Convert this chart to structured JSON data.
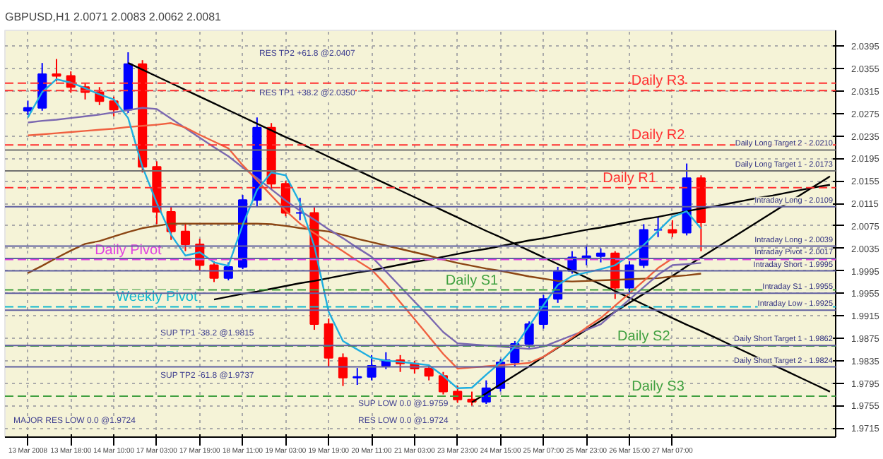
{
  "chart_data": {
    "type": "candlestick",
    "title": "GBPUSD,H1  2.0071 2.0083 2.0062 2.0081",
    "categories": [
      "13 Mar 2008",
      null,
      null,
      "13 Mar 18:00",
      null,
      null,
      "14 Mar 10:00",
      null,
      null,
      "17 Mar 03:00",
      null,
      null,
      "17 Mar 19:00",
      null,
      null,
      "18 Mar 11:00",
      null,
      null,
      "19 Mar 03:00",
      null,
      null,
      "19 Mar 19:00",
      null,
      null,
      "20 Mar 11:00",
      null,
      null,
      "21 Mar 03:00",
      null,
      null,
      "23 Mar 23:00",
      null,
      null,
      "24 Mar 15:00",
      null,
      null,
      "25 Mar 07:00",
      null,
      null,
      "25 Mar 23:00",
      null,
      null,
      "26 Mar 15:00",
      null,
      null,
      "27 Mar 07:00",
      null,
      null,
      null,
      null,
      null,
      null,
      null,
      null,
      null,
      null,
      null
    ],
    "ohlc": [
      [
        2.028,
        2.0298,
        2.0272,
        2.0285
      ],
      [
        2.0285,
        2.0365,
        2.028,
        2.0345
      ],
      [
        2.0345,
        2.0372,
        2.0332,
        2.0342
      ],
      [
        2.0342,
        2.035,
        2.0312,
        2.0322
      ],
      [
        2.0322,
        2.033,
        2.03,
        2.0313
      ],
      [
        2.0313,
        2.0322,
        2.029,
        2.0297
      ],
      [
        2.0297,
        2.0305,
        2.027,
        2.0282
      ],
      [
        2.0282,
        2.0384,
        2.0276,
        2.0363
      ],
      [
        2.0363,
        2.037,
        2.017,
        2.018
      ],
      [
        2.018,
        2.019,
        2.0078,
        2.01
      ],
      [
        2.01,
        2.011,
        2.005,
        2.0065
      ],
      [
        2.0065,
        2.008,
        2.003,
        2.0042
      ],
      [
        2.0042,
        2.0052,
        1.9995,
        2.0005
      ],
      [
        2.0005,
        2.0012,
        1.9975,
        1.9982
      ],
      [
        1.9982,
        2.001,
        1.9978,
        2.0002
      ],
      [
        2.0002,
        2.013,
        1.9998,
        2.0121
      ],
      [
        2.0121,
        2.0268,
        2.011,
        2.025
      ],
      [
        2.025,
        2.0258,
        2.014,
        2.015
      ],
      [
        2.015,
        2.0155,
        2.0092,
        2.0098
      ],
      [
        2.0098,
        2.0125,
        2.0085,
        2.0098
      ],
      [
        2.0098,
        2.0108,
        1.989,
        1.99
      ],
      [
        1.99,
        1.991,
        1.9825,
        1.984
      ],
      [
        1.984,
        1.9848,
        1.979,
        1.9805
      ],
      [
        1.9805,
        1.9822,
        1.9792,
        1.9806
      ],
      [
        1.9806,
        1.9845,
        1.98,
        1.9826
      ],
      [
        1.9826,
        1.985,
        1.982,
        1.9836
      ],
      [
        1.9836,
        1.9845,
        1.9815,
        1.983
      ],
      [
        1.983,
        1.9835,
        1.9812,
        1.9821
      ],
      [
        1.9821,
        1.9828,
        1.98,
        1.9808
      ],
      [
        1.9808,
        1.9815,
        1.9775,
        1.978
      ],
      [
        1.978,
        1.979,
        1.976,
        1.9766
      ],
      [
        1.9766,
        1.978,
        1.9755,
        1.9762
      ],
      [
        1.9762,
        1.98,
        1.9758,
        1.9786
      ],
      [
        1.9786,
        1.9838,
        1.978,
        1.9832
      ],
      [
        1.9832,
        1.987,
        1.9825,
        1.9865
      ],
      [
        1.9865,
        1.9905,
        1.9858,
        1.99
      ],
      [
        1.99,
        1.9952,
        1.9892,
        1.9945
      ],
      [
        1.9945,
        2.0002,
        1.9938,
        1.9995
      ],
      [
        1.9995,
        2.003,
        1.999,
        2.0019
      ],
      [
        2.0019,
        2.004,
        2.0005,
        2.0021
      ],
      [
        2.0021,
        2.0035,
        2.001,
        2.0026
      ],
      [
        2.0026,
        2.003,
        1.9945,
        1.9965
      ],
      [
        1.9965,
        2.0012,
        1.9955,
        2.0005
      ],
      [
        2.0005,
        2.0078,
        2.0,
        2.0068
      ],
      [
        2.0068,
        2.009,
        2.0055,
        2.0068
      ],
      [
        2.0068,
        2.0085,
        2.0055,
        2.0063
      ],
      [
        2.0063,
        2.0186,
        2.0058,
        2.016
      ],
      [
        2.016,
        2.0165,
        2.003,
        2.0081
      ],
      null,
      null,
      null,
      null,
      null,
      null,
      null,
      null,
      null
    ],
    "colors": [
      "#0000ff",
      "#0000ff",
      "#ff0000",
      "#ff0000",
      "#ff0000",
      "#ff0000",
      "#ff0000",
      "#0000ff",
      "#ff0000",
      "#ff0000",
      "#ff0000",
      "#ff0000",
      "#ff0000",
      "#ff0000",
      "#0000ff",
      "#0000ff",
      "#0000ff",
      "#ff0000",
      "#ff0000",
      "#0000ff",
      "#ff0000",
      "#ff0000",
      "#ff0000",
      "#0000ff",
      "#0000ff",
      "#0000ff",
      "#ff0000",
      "#ff0000",
      "#ff0000",
      "#ff0000",
      "#ff0000",
      "#ff0000",
      "#0000ff",
      "#0000ff",
      "#0000ff",
      "#0000ff",
      "#0000ff",
      "#0000ff",
      "#0000ff",
      "#0000ff",
      "#0000ff",
      "#ff0000",
      "#0000ff",
      "#0000ff",
      "#0000ff",
      "#ff0000",
      "#0000ff",
      "#ff0000",
      null,
      null,
      null,
      null,
      null,
      null,
      null,
      null,
      null
    ],
    "series": [
      {
        "type": "line",
        "color": "#000000",
        "values": [
          null,
          null,
          null,
          null,
          null,
          null,
          null,
          2.0365,
          2.0353,
          2.0341,
          2.0329,
          2.0317,
          2.0305,
          2.0293,
          2.0281,
          2.0269,
          2.0257,
          2.0245,
          2.0233,
          2.0222,
          2.021,
          2.0198,
          2.0186,
          2.0174,
          2.0162,
          2.015,
          2.0138,
          2.0126,
          2.0114,
          2.0102,
          2.009,
          2.0078,
          2.0066,
          2.0055,
          2.0043,
          2.0031,
          2.0019,
          2.0007,
          1.9995,
          1.9983,
          1.9971,
          1.9959,
          1.9947,
          1.9935,
          1.9923,
          1.9911,
          1.9899,
          1.9888,
          1.9876,
          1.9864,
          1.9852,
          1.984,
          1.9828,
          1.9816,
          1.9804,
          1.9792,
          1.978
        ]
      },
      {
        "type": "line",
        "color": "#000000",
        "values": [
          null,
          null,
          null,
          null,
          null,
          null,
          null,
          null,
          null,
          null,
          null,
          null,
          null,
          1.9944,
          1.9949,
          1.9954,
          1.9958,
          1.9963,
          1.9968,
          1.9973,
          1.9977,
          1.9982,
          1.9987,
          1.9992,
          1.9996,
          2.0001,
          2.0006,
          2.0011,
          2.0015,
          2.002,
          2.0025,
          2.003,
          2.0034,
          2.0039,
          2.0044,
          2.0049,
          2.0053,
          2.0058,
          2.0063,
          2.0068,
          2.0072,
          2.0077,
          2.0082,
          2.0087,
          2.0091,
          2.0096,
          2.0101,
          2.0106,
          2.011,
          2.0115,
          2.012,
          2.0125,
          2.0129,
          2.0134,
          2.0139,
          2.0144,
          2.0148
        ]
      },
      {
        "type": "line",
        "color": "#000000",
        "values": [
          null,
          null,
          null,
          null,
          null,
          null,
          null,
          null,
          null,
          null,
          null,
          null,
          null,
          null,
          null,
          null,
          null,
          null,
          null,
          null,
          null,
          null,
          null,
          null,
          null,
          null,
          null,
          null,
          null,
          null,
          null,
          1.9761,
          1.9777,
          1.9793,
          1.9809,
          1.9825,
          1.9842,
          1.9858,
          1.9874,
          1.989,
          1.9906,
          1.9922,
          1.9938,
          1.9954,
          1.997,
          1.9986,
          2.0003,
          2.0019,
          2.0035,
          2.0051,
          2.0067,
          2.0083,
          2.0099,
          2.0115,
          2.0131,
          2.0147,
          2.0163
        ]
      },
      {
        "type": "line",
        "color": "#8b4513",
        "values": [
          1.9991,
          2.0004,
          2.0018,
          2.0031,
          2.0043,
          2.0048,
          2.0056,
          2.0064,
          2.0071,
          2.0075,
          2.0079,
          2.0079,
          2.0079,
          2.0079,
          2.0079,
          2.0079,
          2.0079,
          2.0078,
          2.0075,
          2.0071,
          2.0068,
          2.0065,
          2.0059,
          2.0052,
          2.0046,
          2.004,
          2.0034,
          2.0028,
          2.0022,
          2.0015,
          2.0009,
          2.0004,
          1.9999,
          1.9995,
          1.999,
          1.9985,
          1.9981,
          1.9977,
          1.9976,
          1.9977,
          1.9978,
          1.9979,
          1.998,
          1.9981,
          1.9982,
          1.9985,
          1.9987,
          1.999,
          null,
          null,
          null,
          null,
          null,
          null,
          null,
          null,
          null
        ]
      },
      {
        "type": "line",
        "color": "#7b68b0",
        "values": [
          2.0259,
          2.0262,
          2.0264,
          2.0267,
          2.027,
          2.0273,
          2.0277,
          2.0281,
          2.0285,
          2.0283,
          2.0266,
          2.0249,
          2.0232,
          2.0215,
          2.0199,
          2.0179,
          2.016,
          2.014,
          2.012,
          2.0102,
          2.0086,
          2.0069,
          2.0053,
          2.0036,
          2.002,
          1.9994,
          1.9967,
          1.994,
          1.9914,
          1.9886,
          1.9866,
          1.9864,
          1.9862,
          1.986,
          1.9858,
          1.9856,
          1.986,
          1.987,
          1.988,
          1.989,
          1.99,
          1.9922,
          1.9944,
          1.9966,
          1.9988,
          2.0005,
          2.0007,
          2.0009,
          null,
          null,
          null,
          null,
          null,
          null,
          null,
          null,
          null
        ]
      },
      {
        "type": "line",
        "color": "#f06040",
        "values": [
          2.0236,
          2.0238,
          2.024,
          2.0242,
          2.0244,
          2.0246,
          2.0248,
          2.0251,
          2.0253,
          2.0255,
          2.0258,
          2.025,
          2.0237,
          2.0225,
          2.0213,
          2.0183,
          2.0156,
          2.0129,
          2.0102,
          2.0079,
          2.0062,
          2.0046,
          2.003,
          2.0013,
          1.9997,
          1.997,
          1.9939,
          1.9909,
          1.9878,
          1.9847,
          1.9821,
          1.9823,
          1.9825,
          1.9827,
          1.9829,
          1.9831,
          1.9842,
          1.9859,
          1.9876,
          1.9894,
          1.9911,
          1.9933,
          1.9955,
          1.9977,
          2.0,
          2.0017,
          null,
          null,
          null,
          null,
          null,
          null,
          null,
          null,
          null,
          null,
          null
        ]
      },
      {
        "type": "line",
        "color": "#1eaee0",
        "values": [
          2.0268,
          2.0313,
          2.0336,
          2.033,
          2.032,
          2.0309,
          2.03,
          2.0267,
          2.018,
          2.0116,
          2.0059,
          2.0022,
          2.0028,
          2.001,
          2.0004,
          2.0077,
          2.0139,
          2.017,
          2.0165,
          2.0116,
          2.0039,
          1.9922,
          1.987,
          1.9855,
          1.984,
          1.9835,
          1.9833,
          1.983,
          1.9827,
          1.9808,
          1.9786,
          1.9787,
          1.981,
          1.9832,
          1.986,
          1.9897,
          1.9934,
          1.997,
          1.9986,
          1.9992,
          1.9998,
          2.0005,
          2.0022,
          2.0041,
          2.0066,
          2.0091,
          2.0101,
          2.007,
          null,
          null,
          null,
          null,
          null,
          null,
          null,
          null,
          null
        ]
      }
    ],
    "ylim": [
      1.9699,
      2.0423
    ],
    "yticks": [
      {
        "value": 1.9715,
        "label": "1.9715"
      },
      {
        "value": 1.9755,
        "label": "1.9755"
      },
      {
        "value": 1.9795,
        "label": "1.9795"
      },
      {
        "value": 1.9835,
        "label": "1.9835"
      },
      {
        "value": 1.9875,
        "label": "1.9875"
      },
      {
        "value": 1.9915,
        "label": "1.9915"
      },
      {
        "value": 1.9955,
        "label": "1.9955"
      },
      {
        "value": 1.9995,
        "label": "1.9995"
      },
      {
        "value": 2.0035,
        "label": "2.0035"
      },
      {
        "value": 2.0075,
        "label": "2.0075"
      },
      {
        "value": 2.0115,
        "label": "2.0115"
      },
      {
        "value": 2.0155,
        "label": "2.0155"
      },
      {
        "value": 2.0195,
        "label": "2.0195"
      },
      {
        "value": 2.0235,
        "label": "2.0235"
      },
      {
        "value": 2.0275,
        "label": "2.0275"
      },
      {
        "value": 2.0315,
        "label": "2.0315"
      },
      {
        "value": 2.0355,
        "label": "2.0355"
      },
      {
        "value": 2.0395,
        "label": "2.0395"
      }
    ],
    "grid": true,
    "ref_lines": [
      {
        "axis": "y",
        "value": 2.0329,
        "label": null,
        "color": "#ff3030",
        "line_style": "dashed"
      },
      {
        "axis": "y",
        "value": 2.0316,
        "label": "Daily R3",
        "color": "#ff3030",
        "line_style": "dashed"
      },
      {
        "axis": "y",
        "value": 2.0219,
        "label": "Daily R2",
        "color": "#ff3030",
        "line_style": "dashed"
      },
      {
        "axis": "y",
        "value": 2.0143,
        "label": "Daily R1",
        "color": "#ff3030",
        "line_style": "dashed"
      },
      {
        "axis": "y",
        "value": 2.0015,
        "label": "Daily Pivot",
        "color": "#e040e0",
        "line_style": "dashed"
      },
      {
        "axis": "y",
        "value": 1.9961,
        "label": "Daily S1",
        "color": "#40a040",
        "line_style": "dashed"
      },
      {
        "axis": "y",
        "value": 1.9931,
        "label": "Weekly Pivot",
        "color": "#10b8d0",
        "line_style": "dashed"
      },
      {
        "axis": "y",
        "value": 1.9861,
        "label": "Daily S2",
        "color": "#40a040",
        "line_style": "dashed"
      },
      {
        "axis": "y",
        "value": 1.9772,
        "label": "Daily S3",
        "color": "#40a040",
        "line_style": "dashed"
      },
      {
        "axis": "y",
        "value": 2.021,
        "label": "Daily Long Target 2 - 2.0210",
        "color": "#707070",
        "line_style": "solid"
      },
      {
        "axis": "y",
        "value": 2.0173,
        "label": "Daily Long Target 1 - 2.0173",
        "color": "#707070",
        "line_style": "solid"
      },
      {
        "axis": "y",
        "value": 2.0109,
        "label": "Intraday Long - 2.0109",
        "color": "#6060a0",
        "line_style": "solid"
      },
      {
        "axis": "y",
        "value": 2.0039,
        "label": "Intraday Long - 2.0039",
        "color": "#6060a0",
        "line_style": "solid"
      },
      {
        "axis": "y",
        "value": 2.0017,
        "label": "Intraday Pivot - 2.0017",
        "color": "#6060a0",
        "line_style": "solid"
      },
      {
        "axis": "y",
        "value": 1.9995,
        "label": "Intraday Short - 1.9995",
        "color": "#6060a0",
        "line_style": "solid"
      },
      {
        "axis": "y",
        "value": 1.9955,
        "label": "Intraday S1 - 1.9955",
        "color": "#6060a0",
        "line_style": "solid"
      },
      {
        "axis": "y",
        "value": 1.9925,
        "label": "Intraday Low - 1.9925",
        "color": "#6060a0",
        "line_style": "solid"
      },
      {
        "axis": "y",
        "value": 1.9862,
        "label": "Daily Short Target 1 - 1.9862",
        "color": "#6060a0",
        "line_style": "solid"
      },
      {
        "axis": "y",
        "value": 1.9824,
        "label": "Daily Short Target 2 - 1.9824",
        "color": "#6060a0",
        "line_style": "solid"
      }
    ],
    "annotations": [
      "RES TP2 +61.8 @2.0407",
      "RES TP1 +38.2 @2.0350",
      "SUP TP1 -38.2 @1.9815",
      "SUP TP2 -61.8 @1.9737",
      "MAJOR RES LOW 0.0 @1.9724",
      "RES LOW 0.0 @1.9724",
      "SUP LOW 0.0 @1.9759"
    ]
  }
}
